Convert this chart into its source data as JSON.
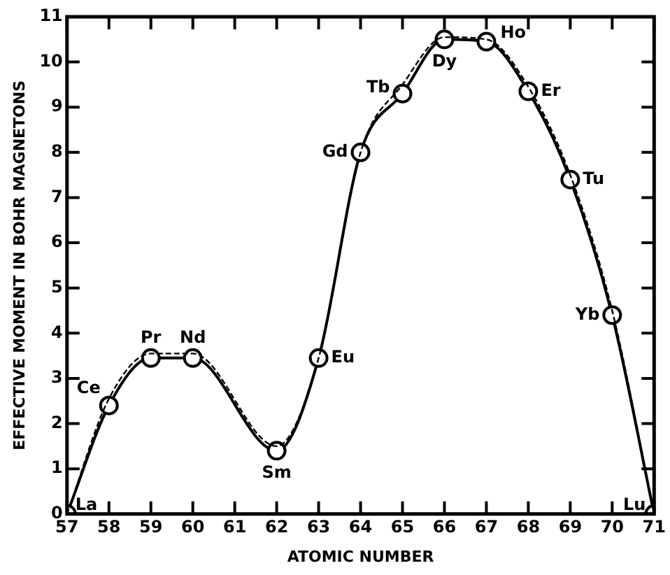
{
  "chart_data": {
    "type": "line",
    "xlabel": "ATOMIC NUMBER",
    "ylabel": "EFFECTIVE MOMENT IN BOHR MAGNETONS",
    "xlim": [
      57,
      71
    ],
    "xticks": [
      57,
      58,
      59,
      60,
      61,
      62,
      63,
      64,
      65,
      66,
      67,
      68,
      69,
      70,
      71
    ],
    "ylim": [
      0,
      11
    ],
    "yticks": [
      0,
      1,
      2,
      3,
      4,
      5,
      6,
      7,
      8,
      9,
      10,
      11
    ],
    "grid": false,
    "legend": false,
    "series": [
      {
        "color": "#000000",
        "marker": "circle",
        "line_style": "solid",
        "x": [
          57,
          58,
          59,
          60,
          62,
          63,
          64,
          65,
          66,
          67,
          68,
          69,
          70,
          71
        ],
        "values": [
          0,
          2.4,
          3.45,
          3.45,
          1.4,
          3.45,
          8.0,
          9.3,
          10.5,
          10.45,
          9.35,
          7.4,
          4.4,
          0
        ]
      },
      {
        "color": "#000000",
        "marker": "none",
        "line_style": "dashed",
        "x": [
          57,
          58,
          59,
          60,
          62,
          63,
          64,
          65,
          66,
          67,
          68,
          69,
          70,
          71
        ],
        "values": [
          0,
          2.55,
          3.55,
          3.55,
          1.5,
          3.45,
          8.0,
          9.5,
          10.55,
          10.5,
          9.45,
          7.5,
          4.5,
          0
        ]
      }
    ],
    "annotations": [
      {
        "text": "La",
        "x": 57,
        "y": 0
      },
      {
        "text": "Ce",
        "x": 58,
        "y": 2.4
      },
      {
        "text": "Pr",
        "x": 59,
        "y": 3.45
      },
      {
        "text": "Nd",
        "x": 60,
        "y": 3.45
      },
      {
        "text": "Sm",
        "x": 62,
        "y": 1.4
      },
      {
        "text": "Eu",
        "x": 63,
        "y": 3.45
      },
      {
        "text": "Gd",
        "x": 64,
        "y": 8.0
      },
      {
        "text": "Tb",
        "x": 65,
        "y": 9.3
      },
      {
        "text": "Dy",
        "x": 66,
        "y": 10.5
      },
      {
        "text": "Ho",
        "x": 67,
        "y": 10.45
      },
      {
        "text": "Er",
        "x": 68,
        "y": 9.35
      },
      {
        "text": "Tu",
        "x": 69,
        "y": 7.4
      },
      {
        "text": "Yb",
        "x": 70,
        "y": 4.4
      },
      {
        "text": "Lu",
        "x": 71,
        "y": 0
      }
    ]
  }
}
